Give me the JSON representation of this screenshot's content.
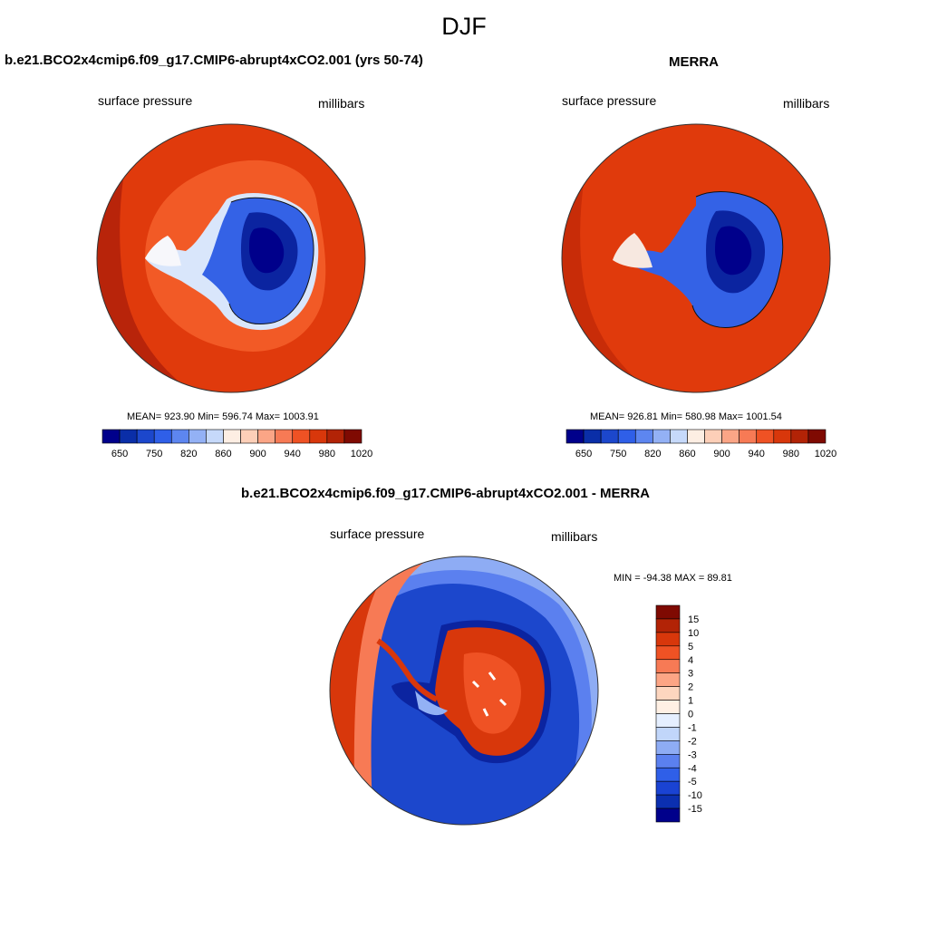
{
  "figure": {
    "title": "DJF"
  },
  "panels": [
    {
      "title": "b.e21.BCO2x4cmip6.f09_g17.CMIP6-abrupt4xCO2.001 (yrs 50-74)",
      "left_label": "surface pressure",
      "right_label": "millibars",
      "stats": "MEAN= 923.90  Min= 596.74  Max= 1003.91"
    },
    {
      "title": "MERRA",
      "left_label": "surface pressure",
      "right_label": "millibars",
      "stats": "MEAN= 926.81  Min= 580.98  Max= 1001.54"
    },
    {
      "title": "b.e21.BCO2x4cmip6.f09_g17.CMIP6-abrupt4xCO2.001 - MERRA",
      "left_label": "surface pressure",
      "right_label": "millibars",
      "stats": "MIN = -94.38 MAX =  89.81"
    }
  ],
  "colorbar_abs": {
    "colors": [
      "#00008b",
      "#0a2ea8",
      "#1c47cc",
      "#2f5fe8",
      "#5d86f0",
      "#93b1f5",
      "#c6d9fa",
      "#fdeee3",
      "#fdcfb8",
      "#fba586",
      "#f77a55",
      "#ef5224",
      "#d8370b",
      "#b22306",
      "#7f0a02"
    ],
    "tick_labels": [
      "650",
      "750",
      "820",
      "860",
      "900",
      "940",
      "980",
      "1020"
    ]
  },
  "colorbar_diff": {
    "colors": [
      "#00008b",
      "#0b2fb0",
      "#1a43d3",
      "#2f5fe8",
      "#5b80ef",
      "#8eacf4",
      "#c1d6fa",
      "#e5efff",
      "#fff0e4",
      "#fdd6bf",
      "#fca585",
      "#f77a55",
      "#ef5224",
      "#d8370b",
      "#b22306",
      "#7f0a02"
    ],
    "tick_labels": [
      "15",
      "10",
      "5",
      "4",
      "3",
      "2",
      "1",
      "0",
      "-1",
      "-2",
      "-3",
      "-4",
      "-5",
      "-10",
      "-15"
    ]
  }
}
